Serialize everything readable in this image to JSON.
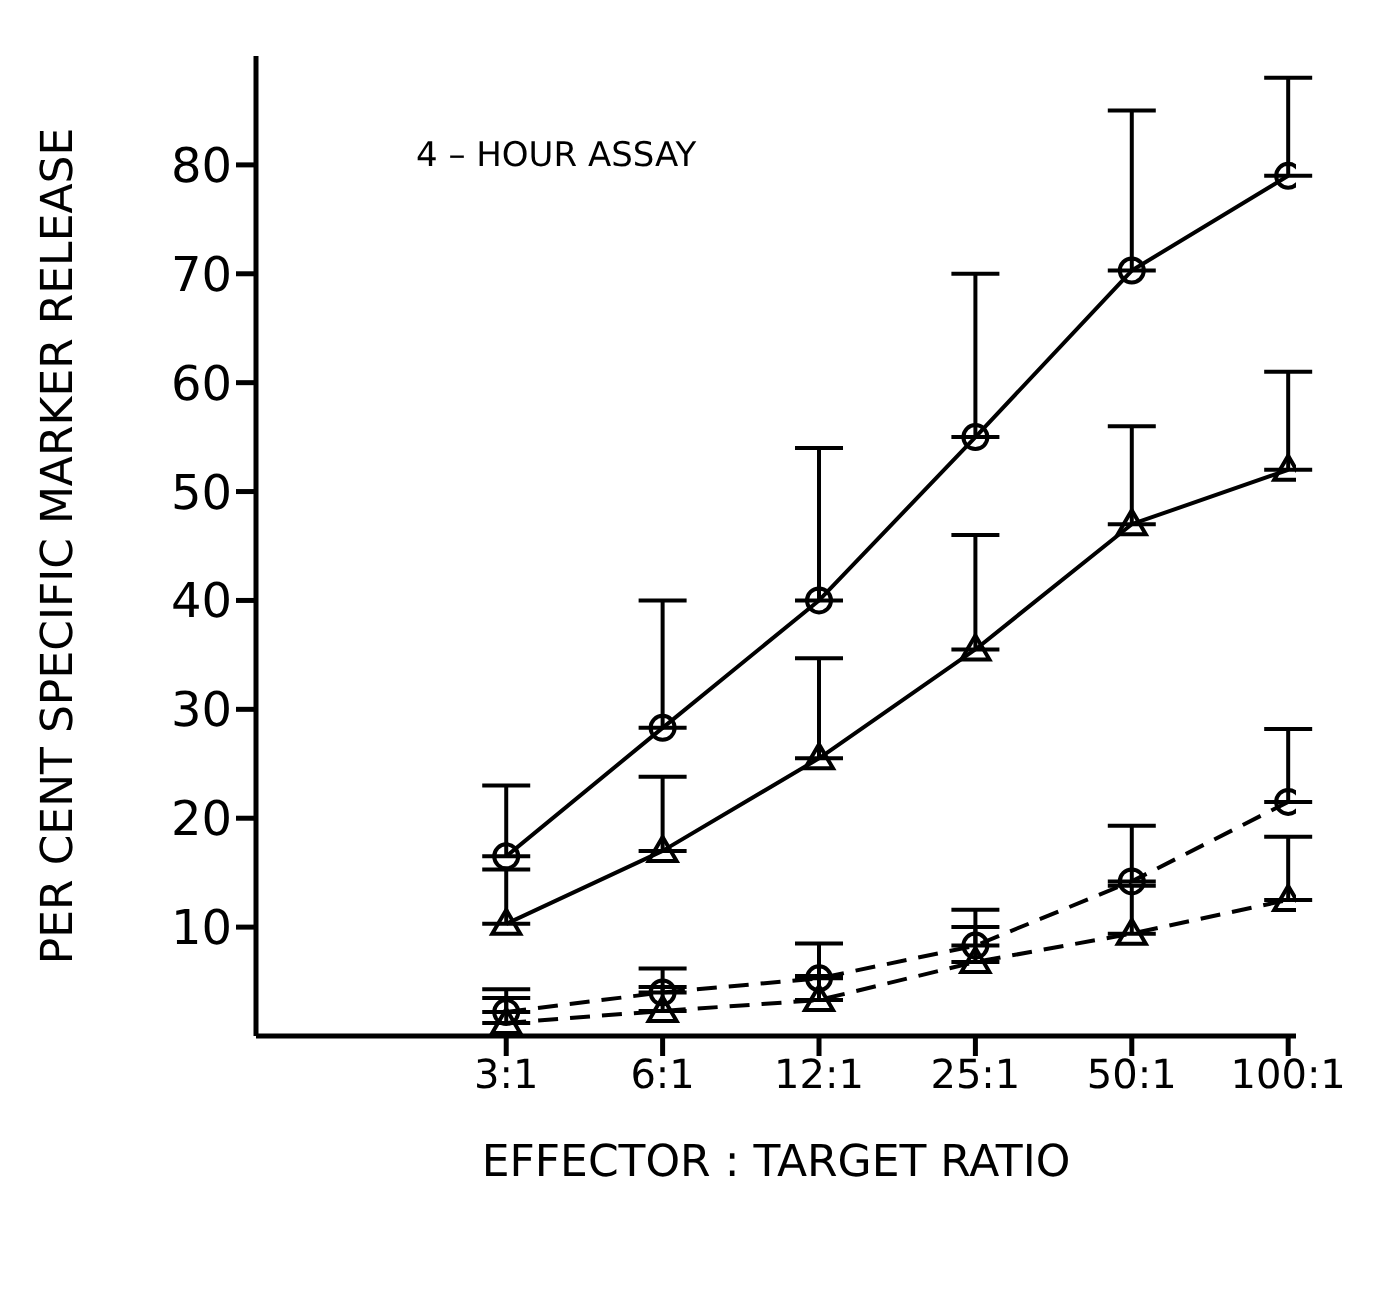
{
  "chart_data": {
    "type": "line",
    "xlabel": "EFFECTOR : TARGET RATIO",
    "ylabel": "PER CENT SPECIFIC MARKER RELEASE",
    "annotations": [
      "4 – HOUR ASSAY"
    ],
    "categories": [
      "3:1",
      "6:1",
      "12:1",
      "25:1",
      "50:1",
      "100:1"
    ],
    "ylim": [
      0,
      90
    ],
    "yticks": [
      10,
      20,
      30,
      40,
      50,
      60,
      70,
      80
    ],
    "series": [
      {
        "color": "#000000",
        "marker": "circle",
        "line_style": "solid",
        "values": [
          16.5,
          28.3,
          40,
          55,
          70.3,
          79
        ],
        "errors": [
          [
            16.5,
            23
          ],
          [
            28.3,
            40
          ],
          [
            40,
            54
          ],
          [
            55,
            70
          ],
          [
            70.3,
            85
          ],
          [
            79,
            88
          ]
        ]
      },
      {
        "color": "#000000",
        "marker": "triangle",
        "line_style": "solid",
        "values": [
          10.3,
          17,
          25.5,
          35.5,
          47,
          52
        ],
        "errors": [
          [
            10.3,
            15.3
          ],
          [
            17,
            23.8
          ],
          [
            25.5,
            34.7
          ],
          [
            35.5,
            46
          ],
          [
            47,
            56
          ],
          [
            52,
            61
          ]
        ]
      },
      {
        "color": "#000000",
        "marker": "circle",
        "line_style": "dashed",
        "values": [
          2.2,
          4,
          5.3,
          8.3,
          14.2,
          21.5
        ],
        "errors": [
          [
            2.2,
            4.3
          ],
          [
            4,
            6.2
          ],
          [
            5.3,
            8.5
          ],
          [
            8.3,
            11.6
          ],
          [
            14.2,
            19.3
          ],
          [
            21.5,
            28.2
          ]
        ]
      },
      {
        "color": "#000000",
        "marker": "triangle",
        "line_style": "dashed",
        "values": [
          1.2,
          2.3,
          3.3,
          6.8,
          9.4,
          12.5
        ],
        "errors": [
          [
            1.2,
            3.5
          ],
          [
            2.3,
            4.5
          ],
          [
            3.3,
            5.5
          ],
          [
            6.8,
            10
          ],
          [
            9.4,
            13.8
          ],
          [
            12.5,
            18.3
          ]
        ]
      }
    ]
  }
}
